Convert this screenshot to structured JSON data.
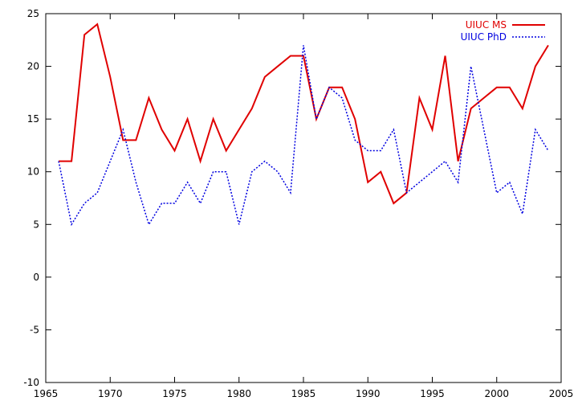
{
  "chart_data": {
    "type": "line",
    "title": "",
    "xlabel": "",
    "ylabel": "",
    "xlim": [
      1965,
      2005
    ],
    "ylim": [
      -10,
      25
    ],
    "xticks": [
      1965,
      1970,
      1975,
      1980,
      1985,
      1990,
      1995,
      2000,
      2005
    ],
    "yticks": [
      -10,
      -5,
      0,
      5,
      10,
      15,
      20,
      25
    ],
    "grid": false,
    "legend_position": "top-right",
    "x": [
      1966,
      1967,
      1968,
      1969,
      1970,
      1971,
      1972,
      1973,
      1974,
      1975,
      1976,
      1977,
      1978,
      1979,
      1980,
      1981,
      1982,
      1983,
      1984,
      1985,
      1986,
      1987,
      1988,
      1989,
      1990,
      1991,
      1992,
      1993,
      1994,
      1995,
      1996,
      1997,
      1998,
      1999,
      2000,
      2001,
      2002,
      2003,
      2004
    ],
    "series": [
      {
        "name": "UIUC MS",
        "color": "#e00000",
        "style": "solid",
        "values": [
          11,
          11,
          23,
          24,
          19,
          13,
          13,
          17,
          14,
          12,
          15,
          11,
          15,
          12,
          14,
          16,
          19,
          20,
          21,
          21,
          15,
          18,
          18,
          15,
          9,
          10,
          7,
          8,
          17,
          14,
          21,
          11,
          16,
          17,
          18,
          18,
          16,
          20,
          22
        ]
      },
      {
        "name": "UIUC PhD",
        "color": "#0000e0",
        "style": "dotted",
        "values": [
          11,
          5,
          7,
          8,
          11,
          14,
          9,
          5,
          7,
          7,
          9,
          7,
          10,
          10,
          5,
          10,
          11,
          10,
          8,
          22,
          15,
          18,
          17,
          13,
          12,
          12,
          14,
          8,
          9,
          10,
          11,
          9,
          20,
          14,
          8,
          9,
          6,
          14,
          12
        ]
      }
    ]
  }
}
